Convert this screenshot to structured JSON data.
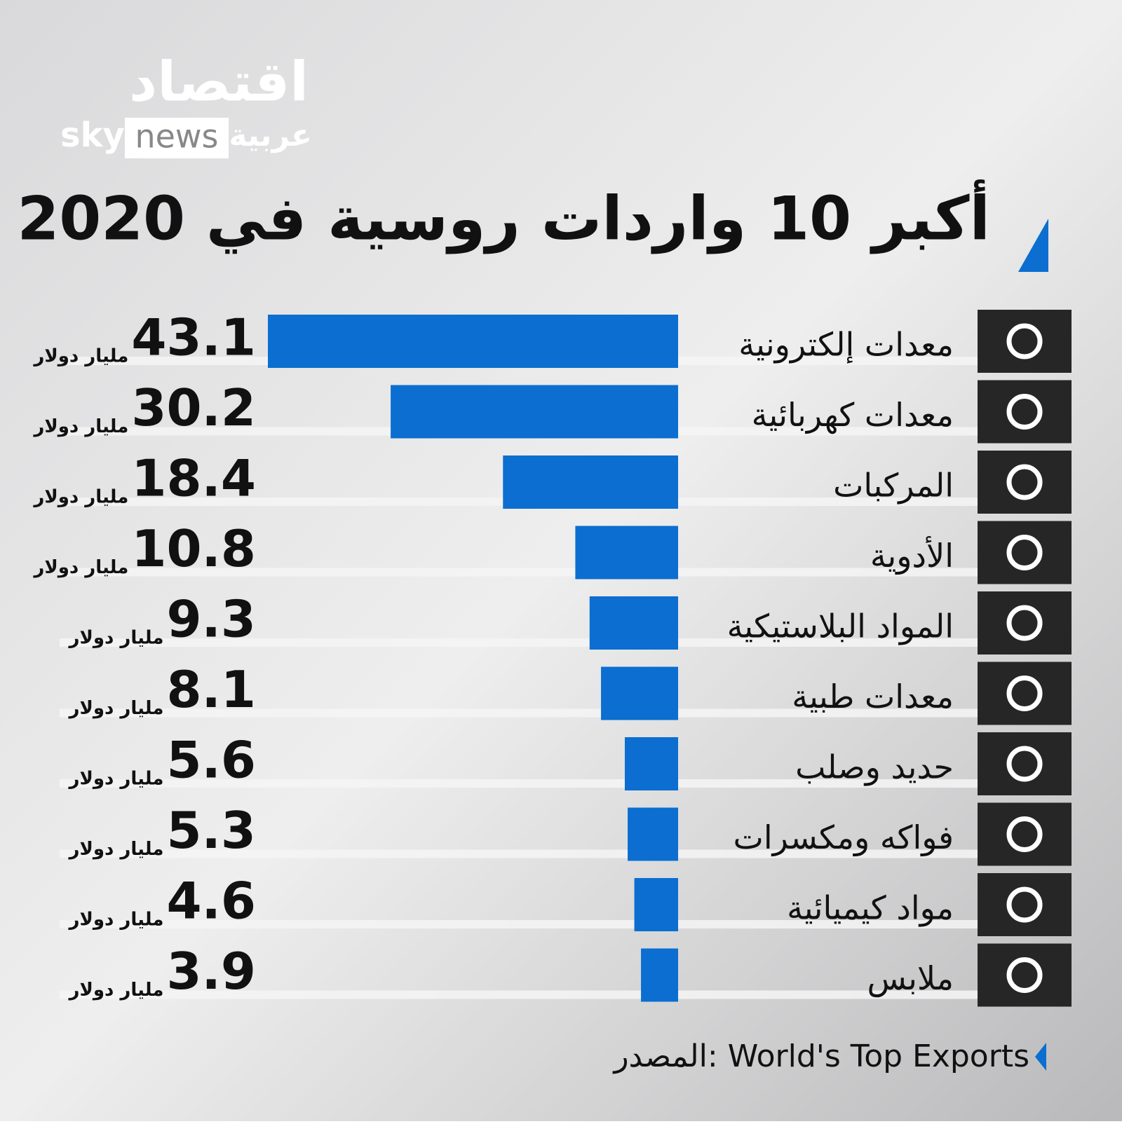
{
  "logo": {
    "brand": "اقتصاد",
    "sky": "sky",
    "news": "news",
    "arabic": "عربية"
  },
  "chart_data": {
    "type": "bar",
    "orientation": "horizontal",
    "title": "أكبر 10 واردات روسية في 2020",
    "categories": [
      "معدات إلكترونية",
      "معدات كهربائية",
      "المركبات",
      "الأدوية",
      "المواد البلاستيكية",
      "معدات طبية",
      "حديد وصلب",
      "فواكه ومكسرات",
      "مواد كيميائية",
      "ملابس"
    ],
    "values": [
      43.1,
      30.2,
      18.4,
      10.8,
      9.3,
      8.1,
      5.6,
      5.3,
      4.6,
      3.9
    ],
    "unit": "مليار دولار",
    "color": "#0b6ed0",
    "source": "المصدر: World's Top Exports"
  }
}
